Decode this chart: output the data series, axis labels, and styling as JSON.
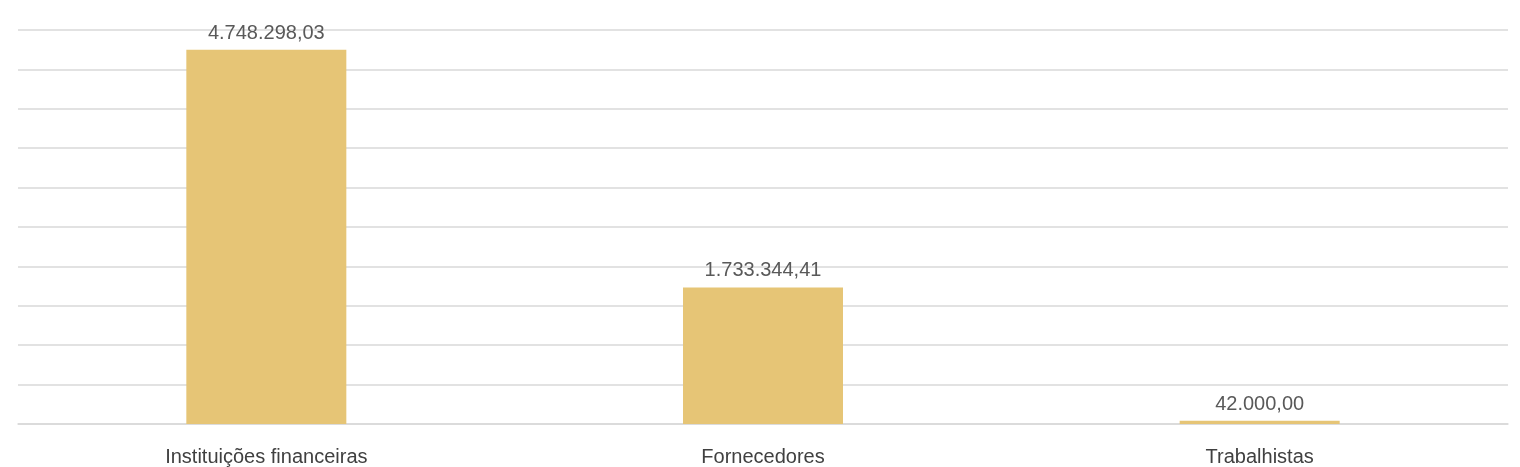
{
  "chart_data": {
    "type": "bar",
    "categories": [
      "Instituições financeiras",
      "Fornecedores",
      "Trabalhistas"
    ],
    "values": [
      4748298.03,
      1733344.41,
      42000.0
    ],
    "value_labels": [
      "4.748.298,03",
      "1.733.344,41",
      "42.000,00"
    ],
    "color": "#e6c576",
    "ylim": [
      0,
      5000000
    ],
    "yticks": [
      0,
      500000,
      1000000,
      1500000,
      2000000,
      2500000,
      3000000,
      3500000,
      4000000,
      4500000,
      5000000
    ],
    "grid": "y",
    "tick_labels": "x"
  }
}
